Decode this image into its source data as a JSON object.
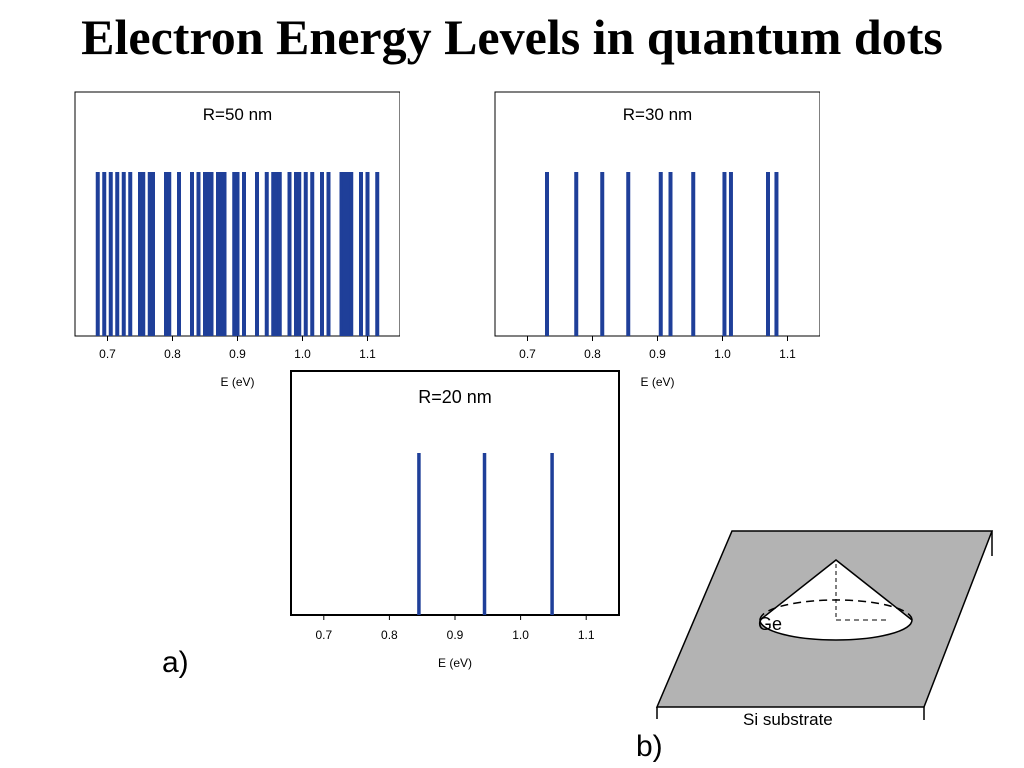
{
  "slide": {
    "title": "Electron Energy Levels in quantum dots",
    "label_a": "a)",
    "label_b": "b)"
  },
  "colors": {
    "line": "#1f3f99",
    "substrate": "#b0b0b0"
  },
  "chart_data": [
    {
      "type": "bar",
      "title": "R=50 nm",
      "xlabel": "E (eV)",
      "xlim": [
        0.65,
        1.15
      ],
      "xticks": [
        "0.7",
        "0.8",
        "0.9",
        "1.0",
        "1.1"
      ],
      "series": [
        {
          "values": [
            0.685,
            0.695,
            0.705,
            0.715,
            0.725,
            0.735,
            0.75,
            0.755,
            0.765,
            0.77,
            0.79,
            0.795,
            0.81,
            0.83,
            0.84,
            0.85,
            0.855,
            0.86,
            0.87,
            0.875,
            0.88,
            0.895,
            0.9,
            0.91,
            0.93,
            0.945,
            0.955,
            0.96,
            0.965,
            0.98,
            0.99,
            0.995,
            1.005,
            1.015,
            1.03,
            1.04,
            1.06,
            1.065,
            1.07,
            1.075,
            1.09,
            1.1,
            1.115
          ]
        }
      ]
    },
    {
      "type": "bar",
      "title": "R=30 nm",
      "xlabel": "E (eV)",
      "xlim": [
        0.65,
        1.15
      ],
      "xticks": [
        "0.7",
        "0.8",
        "0.9",
        "1.0",
        "1.1"
      ],
      "series": [
        {
          "values": [
            0.73,
            0.775,
            0.815,
            0.855,
            0.905,
            0.92,
            0.955,
            1.003,
            1.013,
            1.07,
            1.083
          ]
        }
      ]
    },
    {
      "type": "bar",
      "title": "R=20 nm",
      "xlabel": "E (eV)",
      "xlim": [
        0.65,
        1.15
      ],
      "xticks": [
        "0.7",
        "0.8",
        "0.9",
        "1.0",
        "1.1"
      ],
      "series": [
        {
          "values": [
            0.845,
            0.945,
            1.048
          ]
        }
      ]
    }
  ],
  "diagram": {
    "ge_label": "Ge",
    "substrate_label": "Si substrate"
  }
}
